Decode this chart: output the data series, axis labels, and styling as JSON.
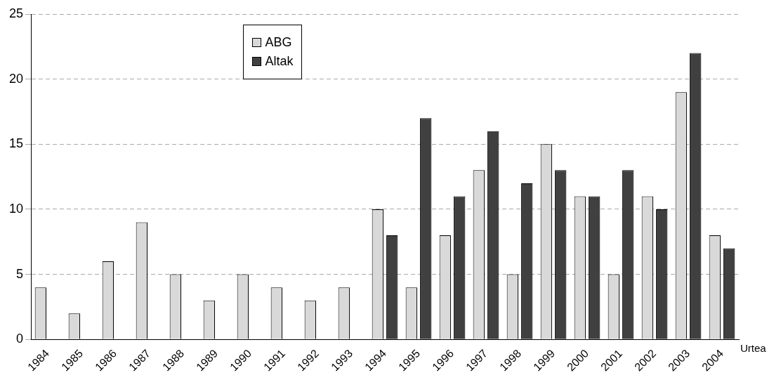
{
  "chart_data": {
    "type": "bar",
    "xlabel": "Urtea",
    "categories": [
      "1984",
      "1985",
      "1986",
      "1987",
      "1988",
      "1989",
      "1990",
      "1991",
      "1992",
      "1993",
      "1994",
      "1995",
      "1996",
      "1997",
      "1998",
      "1999",
      "2000",
      "2001",
      "2002",
      "2003",
      "2004"
    ],
    "series": [
      {
        "name": "ABG",
        "color": "#d9d9d9",
        "values": [
          4,
          2,
          6,
          9,
          5,
          3,
          5,
          4,
          3,
          4,
          10,
          4,
          8,
          13,
          5,
          15,
          11,
          5,
          11,
          19,
          8
        ]
      },
      {
        "name": "Altak",
        "color": "#404040",
        "values": [
          null,
          null,
          null,
          null,
          null,
          null,
          null,
          null,
          null,
          null,
          8,
          17,
          11,
          16,
          12,
          13,
          11,
          13,
          10,
          22,
          7
        ]
      }
    ],
    "ylim": [
      0,
      25
    ],
    "yticks": [
      0,
      5,
      10,
      15,
      20,
      25
    ],
    "grid": "y",
    "legend": "top left"
  }
}
